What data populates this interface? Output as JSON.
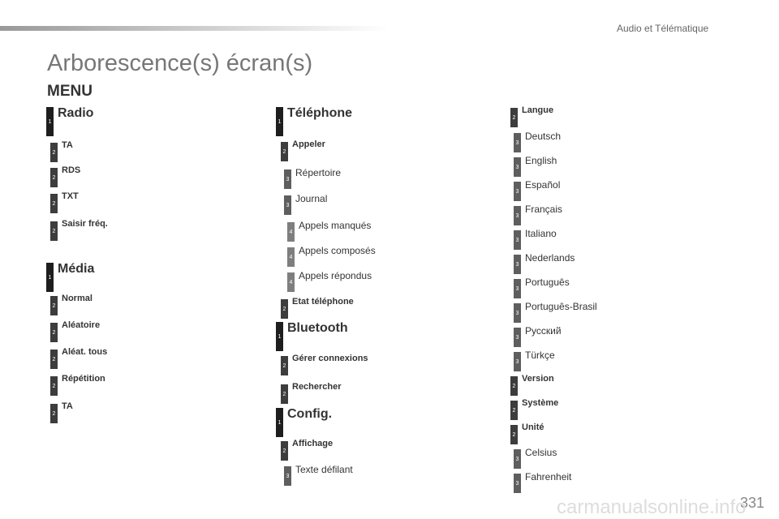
{
  "header": {
    "section": "Audio et Télématique",
    "title": "Arborescence(s) écran(s)",
    "menu": "MENU"
  },
  "columns": [
    {
      "items": [
        {
          "level": 1,
          "label": "Radio"
        },
        {
          "level": 2,
          "label": "TA"
        },
        {
          "level": 2,
          "label": "RDS"
        },
        {
          "level": 2,
          "label": "TXT"
        },
        {
          "level": 2,
          "label": "Saisir fréq."
        },
        {
          "level": 1,
          "label": "Média"
        },
        {
          "level": 2,
          "label": "Normal"
        },
        {
          "level": 2,
          "label": "Aléatoire"
        },
        {
          "level": 2,
          "label": "Aléat. tous"
        },
        {
          "level": 2,
          "label": "Répétition"
        },
        {
          "level": 2,
          "label": "TA"
        }
      ]
    },
    {
      "items": [
        {
          "level": 1,
          "label": "Téléphone"
        },
        {
          "level": 2,
          "label": "Appeler"
        },
        {
          "level": 3,
          "label": "Répertoire"
        },
        {
          "level": 3,
          "label": "Journal"
        },
        {
          "level": 4,
          "label": "Appels manqués"
        },
        {
          "level": 4,
          "label": "Appels composés"
        },
        {
          "level": 4,
          "label": "Appels répondus"
        },
        {
          "level": 2,
          "label": "Etat téléphone"
        },
        {
          "level": 1,
          "label": "Bluetooth"
        },
        {
          "level": 2,
          "label": "Gérer connexions"
        },
        {
          "level": 2,
          "label": "Rechercher"
        },
        {
          "level": 1,
          "label": "Config."
        },
        {
          "level": 2,
          "label": "Affichage"
        },
        {
          "level": 3,
          "label": "Texte défilant"
        }
      ]
    },
    {
      "items": [
        {
          "level": 2,
          "label": "Langue"
        },
        {
          "level": 3,
          "label": "Deutsch"
        },
        {
          "level": 3,
          "label": "English"
        },
        {
          "level": 3,
          "label": "Español"
        },
        {
          "level": 3,
          "label": "Français"
        },
        {
          "level": 3,
          "label": "Italiano"
        },
        {
          "level": 3,
          "label": "Nederlands"
        },
        {
          "level": 3,
          "label": "Português"
        },
        {
          "level": 3,
          "label": "Português-Brasil"
        },
        {
          "level": 3,
          "label": "Русский"
        },
        {
          "level": 3,
          "label": "Türkçe"
        },
        {
          "level": 2,
          "label": "Version"
        },
        {
          "level": 2,
          "label": "Système"
        },
        {
          "level": 2,
          "label": "Unité"
        },
        {
          "level": 3,
          "label": "Celsius"
        },
        {
          "level": 3,
          "label": "Fahrenheit"
        }
      ]
    }
  ],
  "footer": {
    "page": "331",
    "watermark": "carmanualsonline.info"
  }
}
